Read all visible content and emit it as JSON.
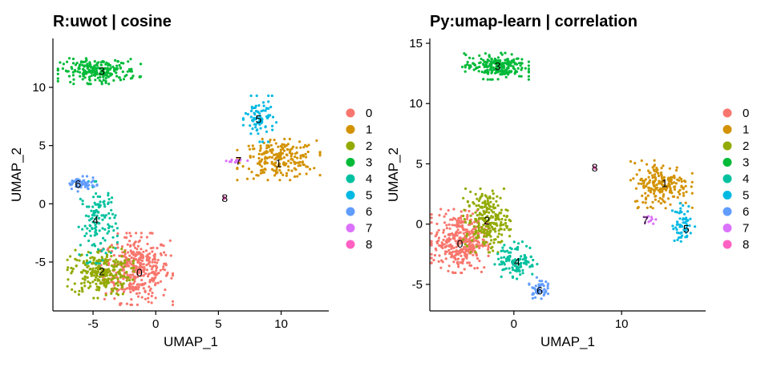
{
  "chart_data": [
    {
      "type": "scatter",
      "title": "R:uwot | cosine",
      "xlabel": "UMAP_1",
      "ylabel": "UMAP_2",
      "xlim": [
        -8.2,
        13.8
      ],
      "ylim": [
        -9.2,
        14.2
      ],
      "xticks": [
        -5,
        0,
        5,
        10
      ],
      "yticks": [
        -5,
        0,
        5,
        10
      ],
      "legend_position": "right",
      "clusters": [
        {
          "name": "0",
          "color": "#F8766D",
          "center": [
            -1.5,
            -5.6
          ],
          "spread": [
            1.3,
            1.4
          ],
          "n": 380,
          "label_pos": [
            -1.3,
            -5.9
          ]
        },
        {
          "name": "1",
          "color": "#D39200",
          "center": [
            9.8,
            3.8
          ],
          "spread": [
            1.5,
            0.8
          ],
          "n": 220,
          "label_pos": [
            9.8,
            3.5
          ]
        },
        {
          "name": "2",
          "color": "#93AA00",
          "center": [
            -4.4,
            -5.9
          ],
          "spread": [
            1.2,
            1.0
          ],
          "n": 260,
          "label_pos": [
            -4.3,
            -5.8
          ]
        },
        {
          "name": "3",
          "color": "#00BA38",
          "center": [
            -4.5,
            11.4
          ],
          "spread": [
            1.5,
            0.5
          ],
          "n": 220,
          "label_pos": [
            -4.3,
            11.4
          ]
        },
        {
          "name": "4",
          "color": "#00C19F",
          "center": [
            -4.6,
            -1.6
          ],
          "spread": [
            0.7,
            1.6
          ],
          "n": 130,
          "label_pos": [
            -4.8,
            -1.4
          ]
        },
        {
          "name": "5",
          "color": "#00B9E3",
          "center": [
            8.3,
            7.3
          ],
          "spread": [
            0.6,
            0.9
          ],
          "n": 80,
          "label_pos": [
            8.2,
            7.3
          ]
        },
        {
          "name": "6",
          "color": "#619CFF",
          "center": [
            -6.0,
            1.7
          ],
          "spread": [
            0.6,
            0.3
          ],
          "n": 60,
          "label_pos": [
            -6.2,
            1.7
          ]
        },
        {
          "name": "7",
          "color": "#DB72FB",
          "center": [
            6.5,
            3.7
          ],
          "spread": [
            0.4,
            0.1
          ],
          "n": 14,
          "label_pos": [
            6.6,
            3.7
          ]
        },
        {
          "name": "8",
          "color": "#FF61C3",
          "center": [
            5.5,
            0.5
          ],
          "spread": [
            0.05,
            0.05
          ],
          "n": 3,
          "label_pos": [
            5.5,
            0.5
          ]
        }
      ]
    },
    {
      "type": "scatter",
      "title": "Py:umap-learn | correlation",
      "xlabel": "UMAP_1",
      "ylabel": "UMAP_2",
      "xlim": [
        -7.8,
        17.8
      ],
      "ylim": [
        -7.2,
        15.4
      ],
      "xticks": [
        0,
        10
      ],
      "yticks": [
        -5,
        0,
        5,
        10,
        15
      ],
      "legend_position": "right",
      "clusters": [
        {
          "name": "0",
          "color": "#F8766D",
          "center": [
            -5.0,
            -1.4
          ],
          "spread": [
            1.2,
            1.2
          ],
          "n": 350,
          "label_pos": [
            -5.0,
            -1.6
          ]
        },
        {
          "name": "1",
          "color": "#D39200",
          "center": [
            13.7,
            3.3
          ],
          "spread": [
            1.3,
            0.9
          ],
          "n": 200,
          "label_pos": [
            14.0,
            3.4
          ]
        },
        {
          "name": "2",
          "color": "#93AA00",
          "center": [
            -2.5,
            0.3
          ],
          "spread": [
            1.0,
            1.2
          ],
          "n": 230,
          "label_pos": [
            -2.5,
            0.3
          ]
        },
        {
          "name": "3",
          "color": "#00BA38",
          "center": [
            -1.7,
            13.1
          ],
          "spread": [
            1.4,
            0.5
          ],
          "n": 210,
          "label_pos": [
            -1.5,
            13.1
          ]
        },
        {
          "name": "4",
          "color": "#00C19F",
          "center": [
            0.2,
            -3.0
          ],
          "spread": [
            0.9,
            0.7
          ],
          "n": 110,
          "label_pos": [
            0.3,
            -3.1
          ]
        },
        {
          "name": "5",
          "color": "#00B9E3",
          "center": [
            15.7,
            0.0
          ],
          "spread": [
            0.5,
            0.8
          ],
          "n": 60,
          "label_pos": [
            16.0,
            -0.4
          ]
        },
        {
          "name": "6",
          "color": "#619CFF",
          "center": [
            2.3,
            -5.3
          ],
          "spread": [
            0.4,
            0.4
          ],
          "n": 50,
          "label_pos": [
            2.4,
            -5.5
          ]
        },
        {
          "name": "7",
          "color": "#DB72FB",
          "center": [
            12.3,
            0.4
          ],
          "spread": [
            0.4,
            0.2
          ],
          "n": 12,
          "label_pos": [
            12.2,
            0.3
          ]
        },
        {
          "name": "8",
          "color": "#FF61C3",
          "center": [
            7.5,
            4.7
          ],
          "spread": [
            0.05,
            0.05
          ],
          "n": 3,
          "label_pos": [
            7.5,
            4.7
          ]
        }
      ]
    }
  ]
}
